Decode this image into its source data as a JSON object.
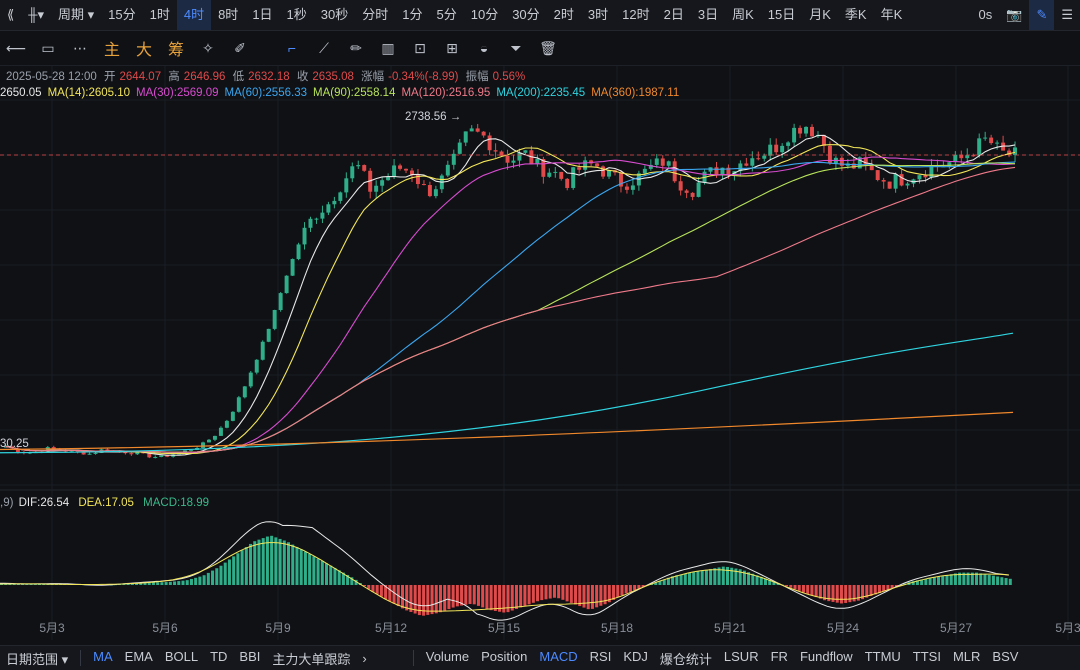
{
  "topbar": {
    "left_icons": [
      "double-chevron-left-icon",
      "candlestick-type-icon"
    ],
    "period_label": "周期",
    "intervals": [
      "15分",
      "1时",
      "4时",
      "8时",
      "1日",
      "1秒",
      "30秒",
      "分时",
      "1分",
      "5分",
      "10分",
      "30分",
      "2时",
      "3时",
      "12时",
      "2日",
      "3日",
      "周K",
      "15日",
      "月K",
      "季K",
      "年K"
    ],
    "active_interval": "4时",
    "right": {
      "label": "0s"
    }
  },
  "toolbar": {
    "left_icons": [
      "crosshair-arrow-icon",
      "rectangle-icon",
      "more-dots-icon"
    ],
    "indicator_chars": [
      "主",
      "大",
      "筹"
    ],
    "right_icons": [
      "sparkle-icon",
      "pen-off-icon",
      "select-icon",
      "ruler-icon",
      "brush-icon",
      "bar-pattern-icon",
      "text-box-icon",
      "multi-chart-icon",
      "magnet-icon",
      "funnel-icon",
      "trash-icon"
    ]
  },
  "ohlc": {
    "date": "2025-05-28 12:00",
    "open_label": "开",
    "open": "2644.07",
    "high_label": "高",
    "high": "2646.96",
    "low_label": "低",
    "low": "2632.18",
    "close_label": "收",
    "close": "2635.08",
    "change_label": "涨幅",
    "change": "-0.34%(-8.99)",
    "amp_label": "振幅",
    "amp": "0.56%"
  },
  "ma_legend": [
    {
      "text": "2650.05",
      "color": "#e8e8e8"
    },
    {
      "text": "MA(14):2605.10",
      "color": "#f3e65a"
    },
    {
      "text": "MA(30):2569.09",
      "color": "#d84cd0"
    },
    {
      "text": "MA(60):2556.33",
      "color": "#3ba6ef"
    },
    {
      "text": "MA(90):2558.14",
      "color": "#b8e35b"
    },
    {
      "text": "MA(120):2516.95",
      "color": "#f07a8a"
    },
    {
      "text": "MA(200):2235.45",
      "color": "#2fd4e0"
    },
    {
      "text": "MA(360):1987.11",
      "color": "#f0882c"
    }
  ],
  "annotations": {
    "high_marker": "2738.56 →",
    "left_price": "30.25"
  },
  "macd": {
    "params_tail": ",9)",
    "dif": "DIF:26.54",
    "dea": "DEA:17.05",
    "macd": "MACD:18.99",
    "dif_color": "#e8e8e8",
    "dea_color": "#f3e65a",
    "macd_color": "#3bb98a"
  },
  "x_axis": [
    "5月3",
    "5月6",
    "5月9",
    "5月12",
    "5月15",
    "5月18",
    "5月21",
    "5月24",
    "5月27",
    "5月3"
  ],
  "colors": {
    "up": "#2fae8a",
    "down": "#e04a4a",
    "accent": "#4d8bff",
    "last_price_line": "#e04a4a"
  },
  "bottombar": {
    "date_range_label": "日期范围",
    "indicators_left": [
      "MA",
      "EMA",
      "BOLL",
      "TD",
      "BBI",
      "主力大单跟踪"
    ],
    "indicators_right": [
      "Volume",
      "Position",
      "MACD",
      "RSI",
      "KDJ",
      "爆仓统计",
      "LSUR",
      "FR",
      "Fundflow",
      "TTMU",
      "TTSI",
      "MLR",
      "BSV"
    ],
    "active": [
      "MA",
      "MACD"
    ]
  },
  "chart_data": {
    "type": "candlestick",
    "x_dates": [
      "5月3",
      "5月6",
      "5月9",
      "5月12",
      "5月15",
      "5月18",
      "5月21",
      "5月24",
      "5月27"
    ],
    "price_high_marker": 2738.56,
    "last_close": 2635.08,
    "close_path": [
      1825,
      1812,
      1808,
      1820,
      1815,
      1810,
      1805,
      1818,
      1812,
      1808,
      1800,
      1795,
      1805,
      1815,
      1830,
      1860,
      1910,
      1990,
      2080,
      2180,
      2300,
      2400,
      2470,
      2500,
      2560,
      2610,
      2540,
      2570,
      2600,
      2590,
      2530,
      2560,
      2620,
      2700,
      2690,
      2650,
      2620,
      2640,
      2600,
      2590,
      2560,
      2600,
      2610,
      2580,
      2555,
      2570,
      2600,
      2620,
      2560,
      2540,
      2580,
      2600,
      2600,
      2630,
      2640,
      2660,
      2700,
      2720,
      2690,
      2620,
      2600,
      2610,
      2580,
      2560,
      2570,
      2585,
      2600,
      2610,
      2620,
      2650,
      2680,
      2640,
      2635
    ],
    "macd_hist": [
      0.5,
      0.3,
      0.2,
      0.4,
      0.3,
      0.1,
      -0.2,
      0.2,
      0.5,
      0.8,
      1,
      1.5,
      3,
      6,
      10,
      14,
      16,
      14,
      11,
      8,
      5,
      2,
      -2,
      -5,
      -8,
      -10,
      -9,
      -7,
      -6,
      -8,
      -9,
      -7,
      -5,
      -4,
      -6,
      -8,
      -6,
      -3,
      -1,
      1,
      3,
      4,
      5,
      6,
      5,
      3,
      1,
      -1,
      -3,
      -5,
      -6,
      -5,
      -3,
      -1,
      1,
      2,
      3,
      4,
      4,
      3,
      2
    ]
  }
}
